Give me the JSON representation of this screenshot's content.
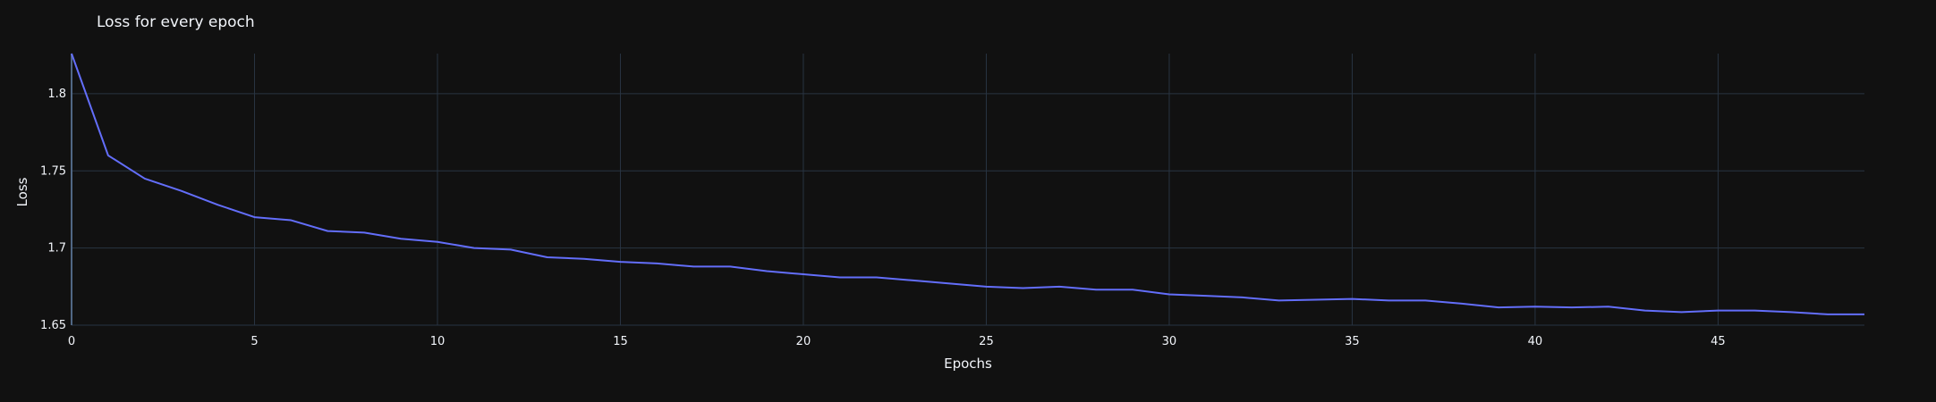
{
  "chart_data": {
    "type": "line",
    "title": "Loss for every epoch",
    "xlabel": "Epochs",
    "ylabel": "Loss",
    "xlim": [
      0,
      49
    ],
    "ylim": [
      1.65,
      1.826
    ],
    "x_ticks": [
      0,
      5,
      10,
      15,
      20,
      25,
      30,
      35,
      40,
      45
    ],
    "x_tick_labels": [
      "0",
      "5",
      "10",
      "15",
      "20",
      "25",
      "30",
      "35",
      "40",
      "45"
    ],
    "y_ticks": [
      1.65,
      1.7,
      1.75,
      1.8
    ],
    "y_tick_labels": [
      "1.65",
      "1.7",
      "1.75",
      "1.8"
    ],
    "grid": true,
    "line_color": "#636efa",
    "background": "#111111",
    "series": [
      {
        "x": [
          0,
          1,
          2,
          3,
          4,
          5,
          6,
          7,
          8,
          9,
          10,
          11,
          12,
          13,
          14,
          15,
          16,
          17,
          18,
          19,
          20,
          21,
          22,
          23,
          24,
          25,
          26,
          27,
          28,
          29,
          30,
          31,
          32,
          33,
          34,
          35,
          36,
          37,
          38,
          39,
          40,
          41,
          42,
          43,
          44,
          45,
          46,
          47,
          48,
          49
        ],
        "values": [
          1.826,
          1.76,
          1.745,
          1.737,
          1.728,
          1.72,
          1.718,
          1.711,
          1.71,
          1.706,
          1.704,
          1.7,
          1.699,
          1.694,
          1.693,
          1.691,
          1.69,
          1.688,
          1.688,
          1.685,
          1.683,
          1.681,
          1.681,
          1.679,
          1.677,
          1.675,
          1.674,
          1.675,
          1.673,
          1.673,
          1.67,
          1.669,
          1.668,
          1.666,
          1.6665,
          1.667,
          1.666,
          1.666,
          1.664,
          1.6615,
          1.662,
          1.6615,
          1.662,
          1.6595,
          1.6585,
          1.6595,
          1.6595,
          1.6585,
          1.657,
          1.657
        ]
      }
    ]
  }
}
